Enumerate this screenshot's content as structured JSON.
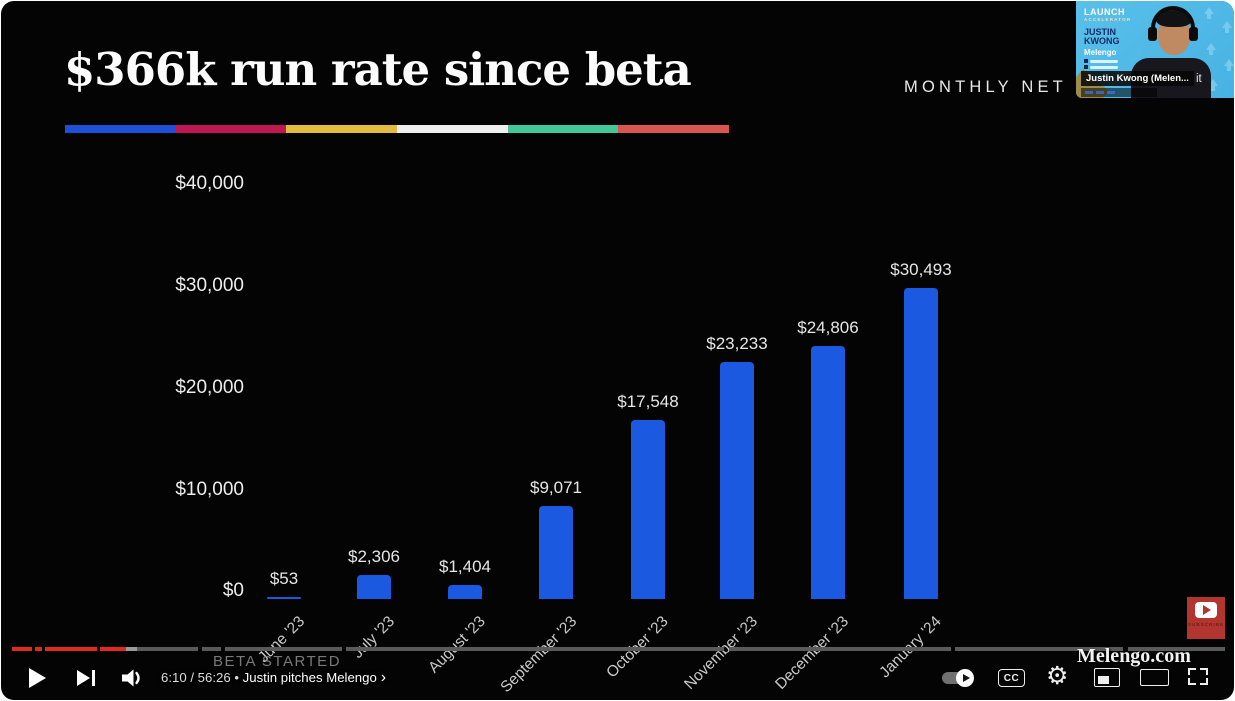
{
  "slide": {
    "title": "$366k run rate since beta",
    "header_right": "MONTHLY NET R",
    "beta_annotation": "BETA STARTED",
    "divider_colors": [
      "#1d4fd7",
      "#be1752",
      "#e3bc3f",
      "#efefef",
      "#42c796",
      "#d9564e"
    ]
  },
  "chart_data": {
    "type": "bar",
    "title": "$366k run rate since beta",
    "subtitle": "MONTHLY NET R",
    "categories": [
      "June '23",
      "July '23",
      "August '23",
      "September '23",
      "October '23",
      "November '23",
      "December '23",
      "January '24"
    ],
    "values": [
      53,
      2306,
      1404,
      9071,
      17548,
      23233,
      24806,
      30493
    ],
    "data_labels": [
      "$53",
      "$2,306",
      "$1,404",
      "$9,071",
      "$17,548",
      "$23,233",
      "$24,806",
      "$30,493"
    ],
    "y_ticks": [
      "$40,000",
      "$30,000",
      "$20,000",
      "$10,000",
      "$0"
    ],
    "ylim": [
      0,
      40000
    ],
    "grid": false,
    "bar_color": "#1b59e0",
    "annotation": "BETA STARTED"
  },
  "player": {
    "time_text": "6:10 / 56:26",
    "separator": "•",
    "chapter_label": "Justin pitches Melengo",
    "chapter_chevron": "›",
    "cc_label": "CC",
    "watermark": "Melengo.com",
    "subscribe_label": "SUBSCRIBE",
    "progress": {
      "colors": {
        "played": "#e02a20",
        "buffer": "#9b9b9b",
        "rest": "#5a5a5a"
      },
      "segments": [
        {
          "from": 11,
          "to": 31,
          "type": "played"
        },
        {
          "from": 34,
          "to": 41,
          "type": "played"
        },
        {
          "from": 44,
          "to": 96,
          "type": "played"
        },
        {
          "from": 99,
          "to": 125,
          "type": "played"
        },
        {
          "from": 125,
          "to": 136,
          "type": "buffer"
        },
        {
          "from": 136,
          "to": 197,
          "type": "rest"
        },
        {
          "from": 201,
          "to": 220,
          "type": "rest"
        },
        {
          "from": 224,
          "to": 341,
          "type": "rest"
        },
        {
          "from": 345,
          "to": 723,
          "type": "rest"
        },
        {
          "from": 728,
          "to": 950,
          "type": "rest"
        },
        {
          "from": 954,
          "to": 1122,
          "type": "rest"
        },
        {
          "from": 1127,
          "to": 1224,
          "type": "rest"
        }
      ]
    }
  },
  "webcam": {
    "program": "LAUNCH",
    "program_sub": "ACCELERATOR",
    "name_line1": "JUSTIN",
    "name_line2": "KWONG",
    "company": "Melengo",
    "caption": "Justin Kwong (Melen...",
    "caption_fragment": "it"
  }
}
